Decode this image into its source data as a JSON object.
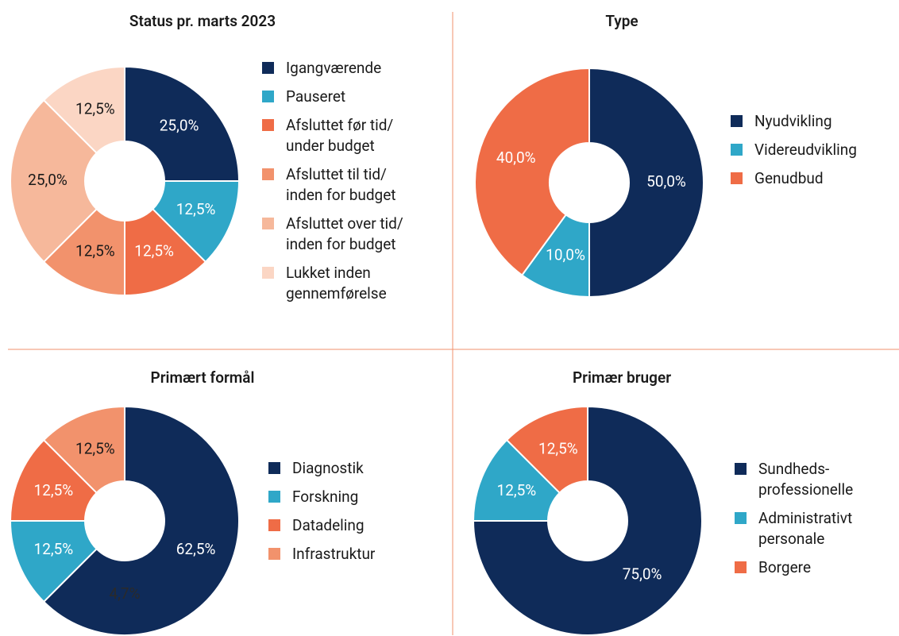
{
  "chart_data": [
    {
      "type": "pie",
      "title": "Status pr. marts 2023",
      "categories": [
        "Igangværende",
        "Pauseret",
        "Afsluttet før tid/\nunder budget",
        "Afsluttet til tid/\ninden for budget",
        "Afsluttet over tid/\ninden for budget",
        "Lukket inden\ngennemførelse"
      ],
      "values": [
        25,
        12.5,
        12.5,
        12.5,
        25,
        12.5
      ],
      "value_labels": [
        "25,0%",
        "12,5%",
        "12,5%",
        "12,5%",
        "25,0%",
        "12,5%"
      ],
      "colors": [
        "#0f2b59",
        "#2fa7c8",
        "#ef6c46",
        "#f2926c",
        "#f6b89b",
        "#fbd6c4"
      ]
    },
    {
      "type": "pie",
      "title": "Type",
      "categories": [
        "Nyudvikling",
        "Videreudvikling",
        "Genudbud"
      ],
      "values": [
        50,
        10,
        40
      ],
      "value_labels": [
        "50,0%",
        "10,0%",
        "40,0%"
      ],
      "colors": [
        "#0f2b59",
        "#2fa7c8",
        "#ef6c46"
      ]
    },
    {
      "type": "pie",
      "title": "Primært formål",
      "categories": [
        "Diagnostik",
        "Forskning",
        "Datadeling",
        "Infrastruktur"
      ],
      "values": [
        62.5,
        12.5,
        12.5,
        12.5
      ],
      "value_labels": [
        "62,5%",
        "12,5%",
        "12,5%",
        "12,5%"
      ],
      "colors": [
        "#0f2b59",
        "#2fa7c8",
        "#ef6c46",
        "#f2926c"
      ],
      "annotation": "4,7%"
    },
    {
      "type": "pie",
      "title": "Primær bruger",
      "categories": [
        "Sundheds-\nprofessionelle",
        "Administrativt\npersonale",
        "Borgere"
      ],
      "values": [
        75,
        12.5,
        12.5
      ],
      "value_labels": [
        "75,0%",
        "12,5%",
        "12,5%"
      ],
      "colors": [
        "#0f2b59",
        "#2fa7c8",
        "#ef6c46"
      ]
    }
  ]
}
